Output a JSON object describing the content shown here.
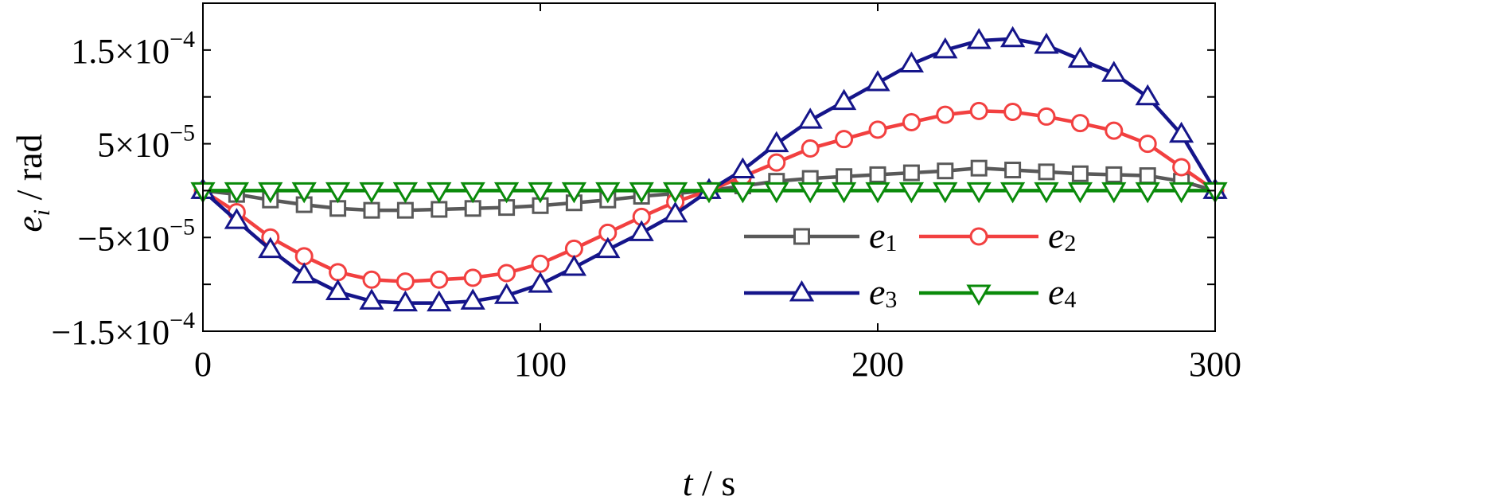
{
  "chart_data": {
    "type": "line",
    "x": [
      0,
      10,
      20,
      30,
      40,
      50,
      60,
      70,
      80,
      90,
      100,
      110,
      120,
      130,
      140,
      150,
      160,
      170,
      180,
      190,
      200,
      210,
      220,
      230,
      240,
      250,
      260,
      270,
      280,
      290,
      300
    ],
    "xlim": [
      0,
      300
    ],
    "ylim": [
      -0.00015,
      0.0002
    ],
    "xticks": [
      0,
      100,
      200,
      300
    ],
    "xtick_labels": [
      "0",
      "100",
      "200",
      "300"
    ],
    "yticks": [
      -0.00015,
      -0.0001,
      -5e-05,
      0,
      5e-05,
      0.0001,
      0.00015
    ],
    "ytick_labels": [
      {
        "value": -0.00015,
        "mantissa": "−1.5×10",
        "exp": "−4"
      },
      {
        "value": -5e-05,
        "mantissa": "−5×10",
        "exp": "−5"
      },
      {
        "value": 5e-05,
        "mantissa": "5×10",
        "exp": "−5"
      },
      {
        "value": 0.00015,
        "mantissa": "1.5×10",
        "exp": "−4"
      }
    ],
    "xlabel": {
      "var": "t",
      "unit": " / s"
    },
    "ylabel": {
      "var": "e",
      "sub": "i",
      "unit": "  / rad"
    },
    "legend_position": "lower-right",
    "series": [
      {
        "name": "e",
        "sub": "1",
        "color": "#595959",
        "marker": "square",
        "values": [
          0,
          -4e-06,
          -1e-05,
          -1.5e-05,
          -1.9e-05,
          -2.1e-05,
          -2.1e-05,
          -2e-05,
          -1.9e-05,
          -1.8e-05,
          -1.6e-05,
          -1.3e-05,
          -1e-05,
          -6e-06,
          -3e-06,
          0,
          5e-06,
          1e-05,
          1.3e-05,
          1.5e-05,
          1.7e-05,
          1.9e-05,
          2.1e-05,
          2.4e-05,
          2.2e-05,
          2e-05,
          1.8e-05,
          1.7e-05,
          1.6e-05,
          1e-05,
          0
        ]
      },
      {
        "name": "e",
        "sub": "2",
        "color": "#f24040",
        "marker": "circle",
        "values": [
          0,
          -2.3e-05,
          -5e-05,
          -7e-05,
          -8.7e-05,
          -9.5e-05,
          -9.7e-05,
          -9.5e-05,
          -9.3e-05,
          -8.8e-05,
          -7.8e-05,
          -6.2e-05,
          -4.5e-05,
          -2.8e-05,
          -1.2e-05,
          0,
          1.5e-05,
          3e-05,
          4.5e-05,
          5.5e-05,
          6.5e-05,
          7.3e-05,
          8.1e-05,
          8.5e-05,
          8.4e-05,
          7.9e-05,
          7.2e-05,
          6.4e-05,
          5e-05,
          2.5e-05,
          0
        ]
      },
      {
        "name": "e",
        "sub": "3",
        "color": "#15158a",
        "marker": "triangle-up",
        "values": [
          0,
          -3.2e-05,
          -6.3e-05,
          -9e-05,
          -0.000108,
          -0.000118,
          -0.00012,
          -0.00012,
          -0.000118,
          -0.000112,
          -0.0001,
          -8.2e-05,
          -6.3e-05,
          -4.5e-05,
          -2.5e-05,
          0,
          2.2e-05,
          5e-05,
          7.5e-05,
          9.5e-05,
          0.000115,
          0.000135,
          0.00015,
          0.00016,
          0.000162,
          0.000155,
          0.00014,
          0.000125,
          0.0001,
          6e-05,
          0
        ]
      },
      {
        "name": "e",
        "sub": "4",
        "color": "#0a8a0a",
        "marker": "triangle-down",
        "values": [
          0,
          0,
          0,
          0,
          0,
          0,
          0,
          0,
          0,
          0,
          0,
          0,
          0,
          0,
          0,
          0,
          0,
          0,
          0,
          0,
          0,
          0,
          0,
          0,
          0,
          0,
          0,
          0,
          0,
          0,
          0
        ]
      }
    ]
  }
}
